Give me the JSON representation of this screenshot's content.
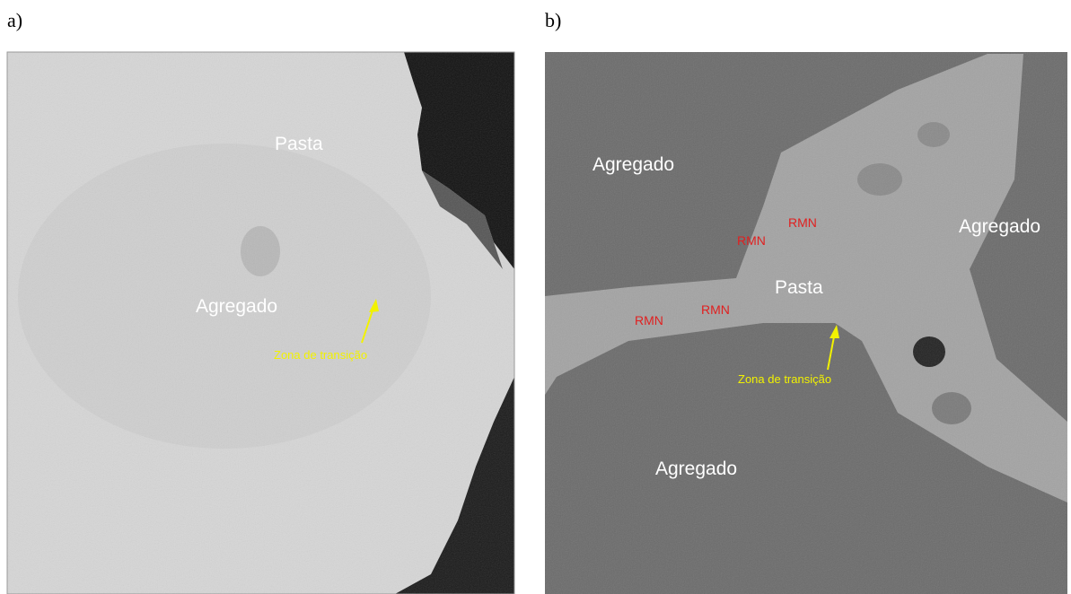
{
  "panels": [
    {
      "label": "a)",
      "annotations": [
        "Pasta",
        "Agregado",
        "Zona de transição"
      ]
    },
    {
      "label": "b)",
      "annotations": [
        "Agregado",
        "Agregado",
        "RMN",
        "RMN",
        "RMN",
        "RMN",
        "Pasta",
        "Zona de transição",
        "Agregado"
      ]
    }
  ]
}
